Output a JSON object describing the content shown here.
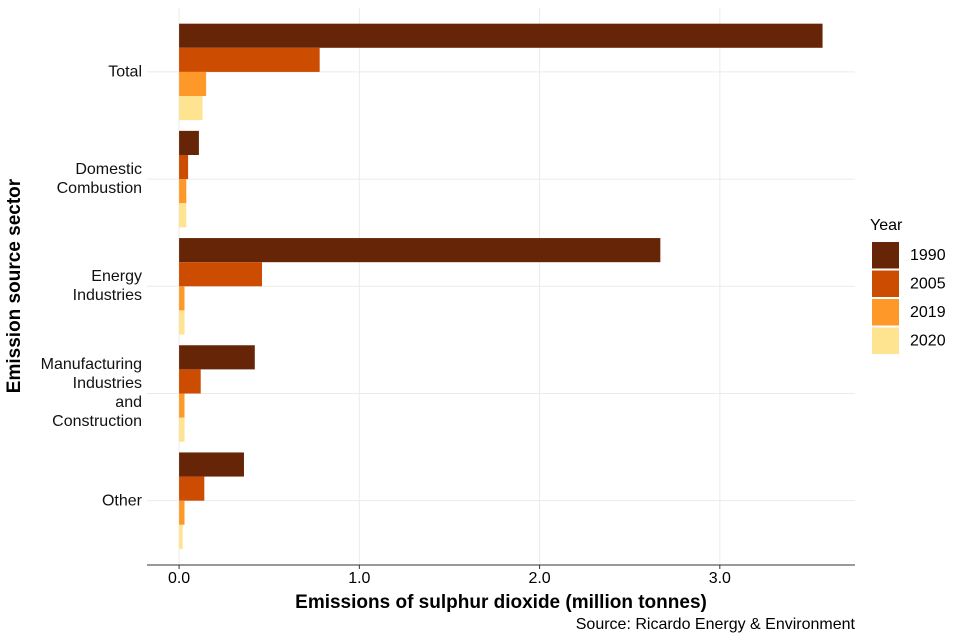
{
  "chart_data": {
    "type": "bar",
    "orientation": "horizontal",
    "x_label": "Emissions of sulphur dioxide (million tonnes)",
    "y_label": "Emission source sector",
    "source": "Source: Ricardo Energy & Environment",
    "legend_title": "Year",
    "categories": [
      "Total",
      "Domestic\nCombustion",
      "Energy\nIndustries",
      "Manufacturing\nIndustries\nand\nConstruction",
      "Other"
    ],
    "series": [
      {
        "name": "1990",
        "color": "#662506",
        "values": [
          3.57,
          0.11,
          2.67,
          0.42,
          0.36
        ]
      },
      {
        "name": "2005",
        "color": "#cc4c02",
        "values": [
          0.78,
          0.05,
          0.46,
          0.12,
          0.14
        ]
      },
      {
        "name": "2019",
        "color": "#fe9929",
        "values": [
          0.15,
          0.04,
          0.03,
          0.03,
          0.03
        ]
      },
      {
        "name": "2020",
        "color": "#fee391",
        "values": [
          0.13,
          0.04,
          0.03,
          0.03,
          0.02
        ]
      }
    ],
    "xlim": [
      -0.178,
      3.75
    ],
    "xticks": [
      {
        "value": 0,
        "label": "0.0"
      },
      {
        "value": 1,
        "label": "1.0"
      },
      {
        "value": 2,
        "label": "2.0"
      },
      {
        "value": 3,
        "label": "3.0"
      }
    ],
    "grid": true,
    "legend": "right"
  }
}
